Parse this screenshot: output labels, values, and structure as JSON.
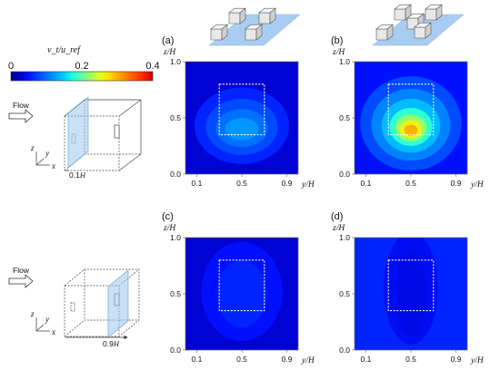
{
  "colorbar": {
    "title": "v_t/u_ref",
    "ticks": [
      "0",
      "0.2",
      "0.4"
    ],
    "colors": [
      "#00008f",
      "#0000c8",
      "#0010ff",
      "#0040ff",
      "#0070ff",
      "#00a0ff",
      "#00d0ff",
      "#20ffe0",
      "#60ff9f",
      "#a0ff60",
      "#e0ff20",
      "#ffe000",
      "#ffb000",
      "#ff8000",
      "#ff5000",
      "#ff2000",
      "#d00000"
    ]
  },
  "schematics": [
    {
      "flow_label": "Flow",
      "distance_label_num": "0.1",
      "distance_label_unit": "H",
      "axes": [
        "z",
        "y",
        "x"
      ]
    },
    {
      "flow_label": "Flow",
      "distance_label_num": "0.9",
      "distance_label_unit": "H",
      "axes": [
        "z",
        "y",
        "x"
      ]
    }
  ],
  "chart_data": [
    {
      "type": "heatmap",
      "panel": "(a)",
      "xlabel": "y/H",
      "ylabel": "z/H",
      "xticks": [
        "0.1",
        "0.5",
        "0.9"
      ],
      "yticks": [
        "0.0",
        "0.5",
        "1.0"
      ],
      "xlim": [
        0.0,
        1.0
      ],
      "ylim": [
        0.0,
        1.0
      ],
      "value_range": [
        0,
        0.4
      ],
      "background_value": 0.03,
      "contours": [
        {
          "level": 0.06,
          "cx": 0.5,
          "cy": 0.43,
          "rx": 0.42,
          "ry": 0.34
        },
        {
          "level": 0.08,
          "cx": 0.5,
          "cy": 0.42,
          "rx": 0.32,
          "ry": 0.25
        },
        {
          "level": 0.1,
          "cx": 0.5,
          "cy": 0.41,
          "rx": 0.23,
          "ry": 0.17
        },
        {
          "level": 0.12,
          "cx": 0.5,
          "cy": 0.4,
          "rx": 0.15,
          "ry": 0.1
        }
      ],
      "window": {
        "y": [
          0.3,
          0.7
        ],
        "z": [
          0.35,
          0.8
        ]
      }
    },
    {
      "type": "heatmap",
      "panel": "(b)",
      "xlabel": "y/H",
      "ylabel": "z/H",
      "xticks": [
        "0.1",
        "0.5",
        "0.9"
      ],
      "yticks": [
        "0.0",
        "0.5",
        "1.0"
      ],
      "xlim": [
        0.0,
        1.0
      ],
      "ylim": [
        0.0,
        1.0
      ],
      "value_range": [
        0,
        0.4
      ],
      "background_value": 0.05,
      "contours": [
        {
          "level": 0.08,
          "cx": 0.5,
          "cy": 0.45,
          "rx": 0.45,
          "ry": 0.42
        },
        {
          "level": 0.11,
          "cx": 0.5,
          "cy": 0.44,
          "rx": 0.35,
          "ry": 0.32
        },
        {
          "level": 0.14,
          "cx": 0.5,
          "cy": 0.43,
          "rx": 0.26,
          "ry": 0.24
        },
        {
          "level": 0.18,
          "cx": 0.5,
          "cy": 0.42,
          "rx": 0.19,
          "ry": 0.17
        },
        {
          "level": 0.22,
          "cx": 0.5,
          "cy": 0.41,
          "rx": 0.14,
          "ry": 0.12
        },
        {
          "level": 0.26,
          "cx": 0.5,
          "cy": 0.4,
          "rx": 0.1,
          "ry": 0.08
        },
        {
          "level": 0.3,
          "cx": 0.5,
          "cy": 0.39,
          "rx": 0.06,
          "ry": 0.05
        }
      ],
      "window": {
        "y": [
          0.3,
          0.7
        ],
        "z": [
          0.35,
          0.8
        ]
      }
    },
    {
      "type": "heatmap",
      "panel": "(c)",
      "xlabel": "y/H",
      "ylabel": "z/H",
      "xticks": [
        "0.1",
        "0.5",
        "0.9"
      ],
      "yticks": [
        "0.0",
        "0.5",
        "1.0"
      ],
      "xlim": [
        0.0,
        1.0
      ],
      "ylim": [
        0.0,
        1.0
      ],
      "value_range": [
        0,
        0.4
      ],
      "background_value": 0.03,
      "contours": [
        {
          "level": 0.05,
          "cx": 0.5,
          "cy": 0.52,
          "rx": 0.36,
          "ry": 0.44
        },
        {
          "level": 0.06,
          "cx": 0.5,
          "cy": 0.5,
          "rx": 0.22,
          "ry": 0.3
        }
      ],
      "window": {
        "y": [
          0.3,
          0.7
        ],
        "z": [
          0.35,
          0.8
        ]
      }
    },
    {
      "type": "heatmap",
      "panel": "(d)",
      "xlabel": "y/H",
      "ylabel": "z/H",
      "xticks": [
        "0.1",
        "0.5",
        "0.9"
      ],
      "yticks": [
        "0.0",
        "0.5",
        "1.0"
      ],
      "xlim": [
        0.0,
        1.0
      ],
      "ylim": [
        0.0,
        1.0
      ],
      "value_range": [
        0,
        0.4
      ],
      "background_value": 0.06,
      "contours": [
        {
          "level": 0.045,
          "cx": 0.5,
          "cy": 0.55,
          "rx": 0.24,
          "ry": 0.5
        },
        {
          "level": 0.04,
          "cx": 0.5,
          "cy": 0.5,
          "rx": 0.14,
          "ry": 0.38
        }
      ],
      "window": {
        "y": [
          0.3,
          0.7
        ],
        "z": [
          0.35,
          0.8
        ]
      }
    }
  ]
}
